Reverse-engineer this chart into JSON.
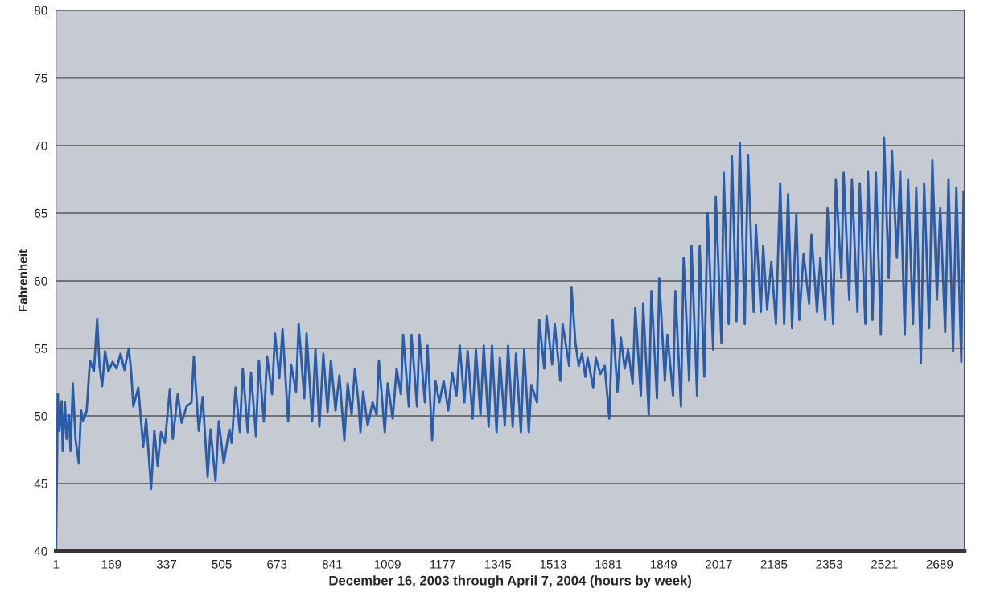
{
  "chart_data": {
    "type": "line",
    "xlabel": "December 16, 2003 through April 7, 2004 (hours by week)",
    "ylabel": "Fahrenheit",
    "xlim": [
      1,
      2764
    ],
    "ylim": [
      40,
      80
    ],
    "xticks": [
      1,
      169,
      337,
      505,
      673,
      841,
      1009,
      1177,
      1345,
      1513,
      1681,
      1849,
      2017,
      2185,
      2353,
      2521,
      2689
    ],
    "yticks": [
      40,
      45,
      50,
      55,
      60,
      65,
      70,
      75,
      80
    ],
    "grid": "y",
    "series": [
      {
        "color": "#2a5caa",
        "x": [
          1,
          6,
          11,
          18,
          21,
          28,
          33,
          40,
          45,
          52,
          60,
          70,
          77,
          84,
          94,
          104,
          116,
          126,
          133,
          141,
          150,
          160,
          173,
          185,
          197,
          209,
          222,
          229,
          236,
          251,
          266,
          275,
          290,
          300,
          310,
          320,
          332,
          347,
          356,
          371,
          383,
          398,
          413,
          420,
          435,
          447,
          462,
          471,
          486,
          496,
          511,
          528,
          535,
          547,
          560,
          569,
          584,
          594,
          609,
          618,
          633,
          643,
          658,
          667,
          680,
          690,
          707,
          716,
          731,
          739,
          756,
          763,
          780,
          790,
          802,
          814,
          827,
          837,
          851,
          863,
          878,
          888,
          900,
          910,
          920,
          927,
          935,
          949,
          964,
          976,
          983,
          1001,
          1010,
          1025,
          1037,
          1050,
          1057,
          1074,
          1082,
          1099,
          1106,
          1123,
          1131,
          1145,
          1155,
          1167,
          1180,
          1194,
          1206,
          1219,
          1229,
          1243,
          1253,
          1268,
          1278,
          1292,
          1302,
          1317,
          1327,
          1341,
          1351,
          1366,
          1376,
          1390,
          1400,
          1415,
          1425,
          1439,
          1447,
          1464,
          1471,
          1486,
          1493,
          1510,
          1518,
          1535,
          1542,
          1562,
          1569,
          1581,
          1591,
          1601,
          1611,
          1618,
          1635,
          1643,
          1657,
          1670,
          1684,
          1694,
          1709,
          1719,
          1731,
          1741,
          1755,
          1763,
          1780,
          1787,
          1804,
          1812,
          1829,
          1836,
          1853,
          1861,
          1878,
          1885,
          1902,
          1910,
          1927,
          1934,
          1951,
          1959,
          1973,
          1983,
          2000,
          2008,
          2025,
          2032,
          2047,
          2057,
          2071,
          2081,
          2096,
          2106,
          2123,
          2130,
          2145,
          2152,
          2164,
          2177,
          2191,
          2204,
          2216,
          2228,
          2240,
          2253,
          2262,
          2275,
          2292,
          2299,
          2316,
          2326,
          2341,
          2348,
          2365,
          2373,
          2390,
          2397,
          2414,
          2422,
          2439,
          2446,
          2463,
          2471,
          2485,
          2495,
          2510,
          2520,
          2534,
          2544,
          2559,
          2569,
          2583,
          2593,
          2608,
          2618,
          2632,
          2642,
          2657,
          2667,
          2681,
          2691,
          2706,
          2716,
          2730,
          2740,
          2755,
          2762
        ],
        "values": [
          40,
          51.6,
          48.9,
          51.1,
          47.4,
          51,
          48.3,
          50.1,
          47.4,
          52.4,
          48.3,
          46.5,
          50.4,
          49.6,
          50.4,
          54.1,
          53.3,
          57.2,
          53.7,
          52.2,
          54.8,
          53.3,
          54,
          53.5,
          54.6,
          53.4,
          55,
          53.4,
          50.7,
          52.1,
          47.7,
          49.8,
          44.6,
          48.9,
          46.3,
          48.8,
          48,
          52,
          48.3,
          51.6,
          49.5,
          50.7,
          51,
          54.4,
          48.9,
          51.4,
          45.5,
          49,
          45.2,
          49.6,
          46.5,
          49,
          48,
          52.1,
          48.8,
          53.5,
          48.8,
          53.2,
          48.5,
          54.1,
          49.6,
          54.4,
          51.6,
          56.1,
          52.8,
          56.4,
          49.6,
          53.8,
          51.8,
          56.8,
          51.3,
          56.1,
          49.6,
          54.9,
          49.2,
          54.6,
          50.3,
          54.1,
          50.4,
          53,
          48.2,
          52.4,
          50.1,
          53.5,
          51.2,
          48.8,
          51.8,
          49.3,
          51,
          50.1,
          54.1,
          48.8,
          52.4,
          49.8,
          53.5,
          51.6,
          56,
          50.7,
          56,
          50.7,
          56,
          51,
          55.2,
          48.2,
          52.6,
          51,
          52.6,
          50.4,
          53.2,
          51.5,
          55.2,
          51,
          54.8,
          49.8,
          54.9,
          50.1,
          55.2,
          49.2,
          55.2,
          48.8,
          54.3,
          49.3,
          55.2,
          49.2,
          54.6,
          48.8,
          54.9,
          48.8,
          52.3,
          51,
          57.1,
          53.5,
          57.4,
          53.8,
          56.8,
          52.6,
          56.8,
          53.7,
          59.5,
          55.4,
          53.7,
          54.6,
          52.9,
          54.3,
          52.1,
          54.3,
          53.1,
          53.7,
          49.8,
          57.1,
          51.8,
          55.8,
          53.5,
          54.9,
          52.4,
          58,
          51.5,
          58.3,
          50.1,
          59.2,
          51.3,
          60.2,
          52.6,
          56,
          51.5,
          59.2,
          50.7,
          61.7,
          52.6,
          62.6,
          51.5,
          62.6,
          52.9,
          65,
          54.9,
          66.2,
          55.4,
          68,
          56.8,
          69.2,
          57,
          70.2,
          56.8,
          69.3,
          57.7,
          64.1,
          57.7,
          62.6,
          57.9,
          61.4,
          56.8,
          67.2,
          56.8,
          66.4,
          56.5,
          64.9,
          57.1,
          62,
          58.3,
          63.4,
          57.7,
          61.7,
          57.1,
          65.4,
          56.8,
          67.5,
          60.2,
          68,
          58.6,
          67.5,
          57.7,
          67.2,
          56.8,
          68.1,
          57.1,
          68,
          56,
          70.6,
          60.2,
          69.6,
          61.7,
          68.1,
          56,
          67.5,
          56.8,
          66.9,
          53.9,
          67.2,
          56.5,
          68.9,
          58.6,
          65.4,
          56.2,
          67.5,
          54.8,
          66.9,
          54,
          66.6
        ]
      }
    ]
  }
}
